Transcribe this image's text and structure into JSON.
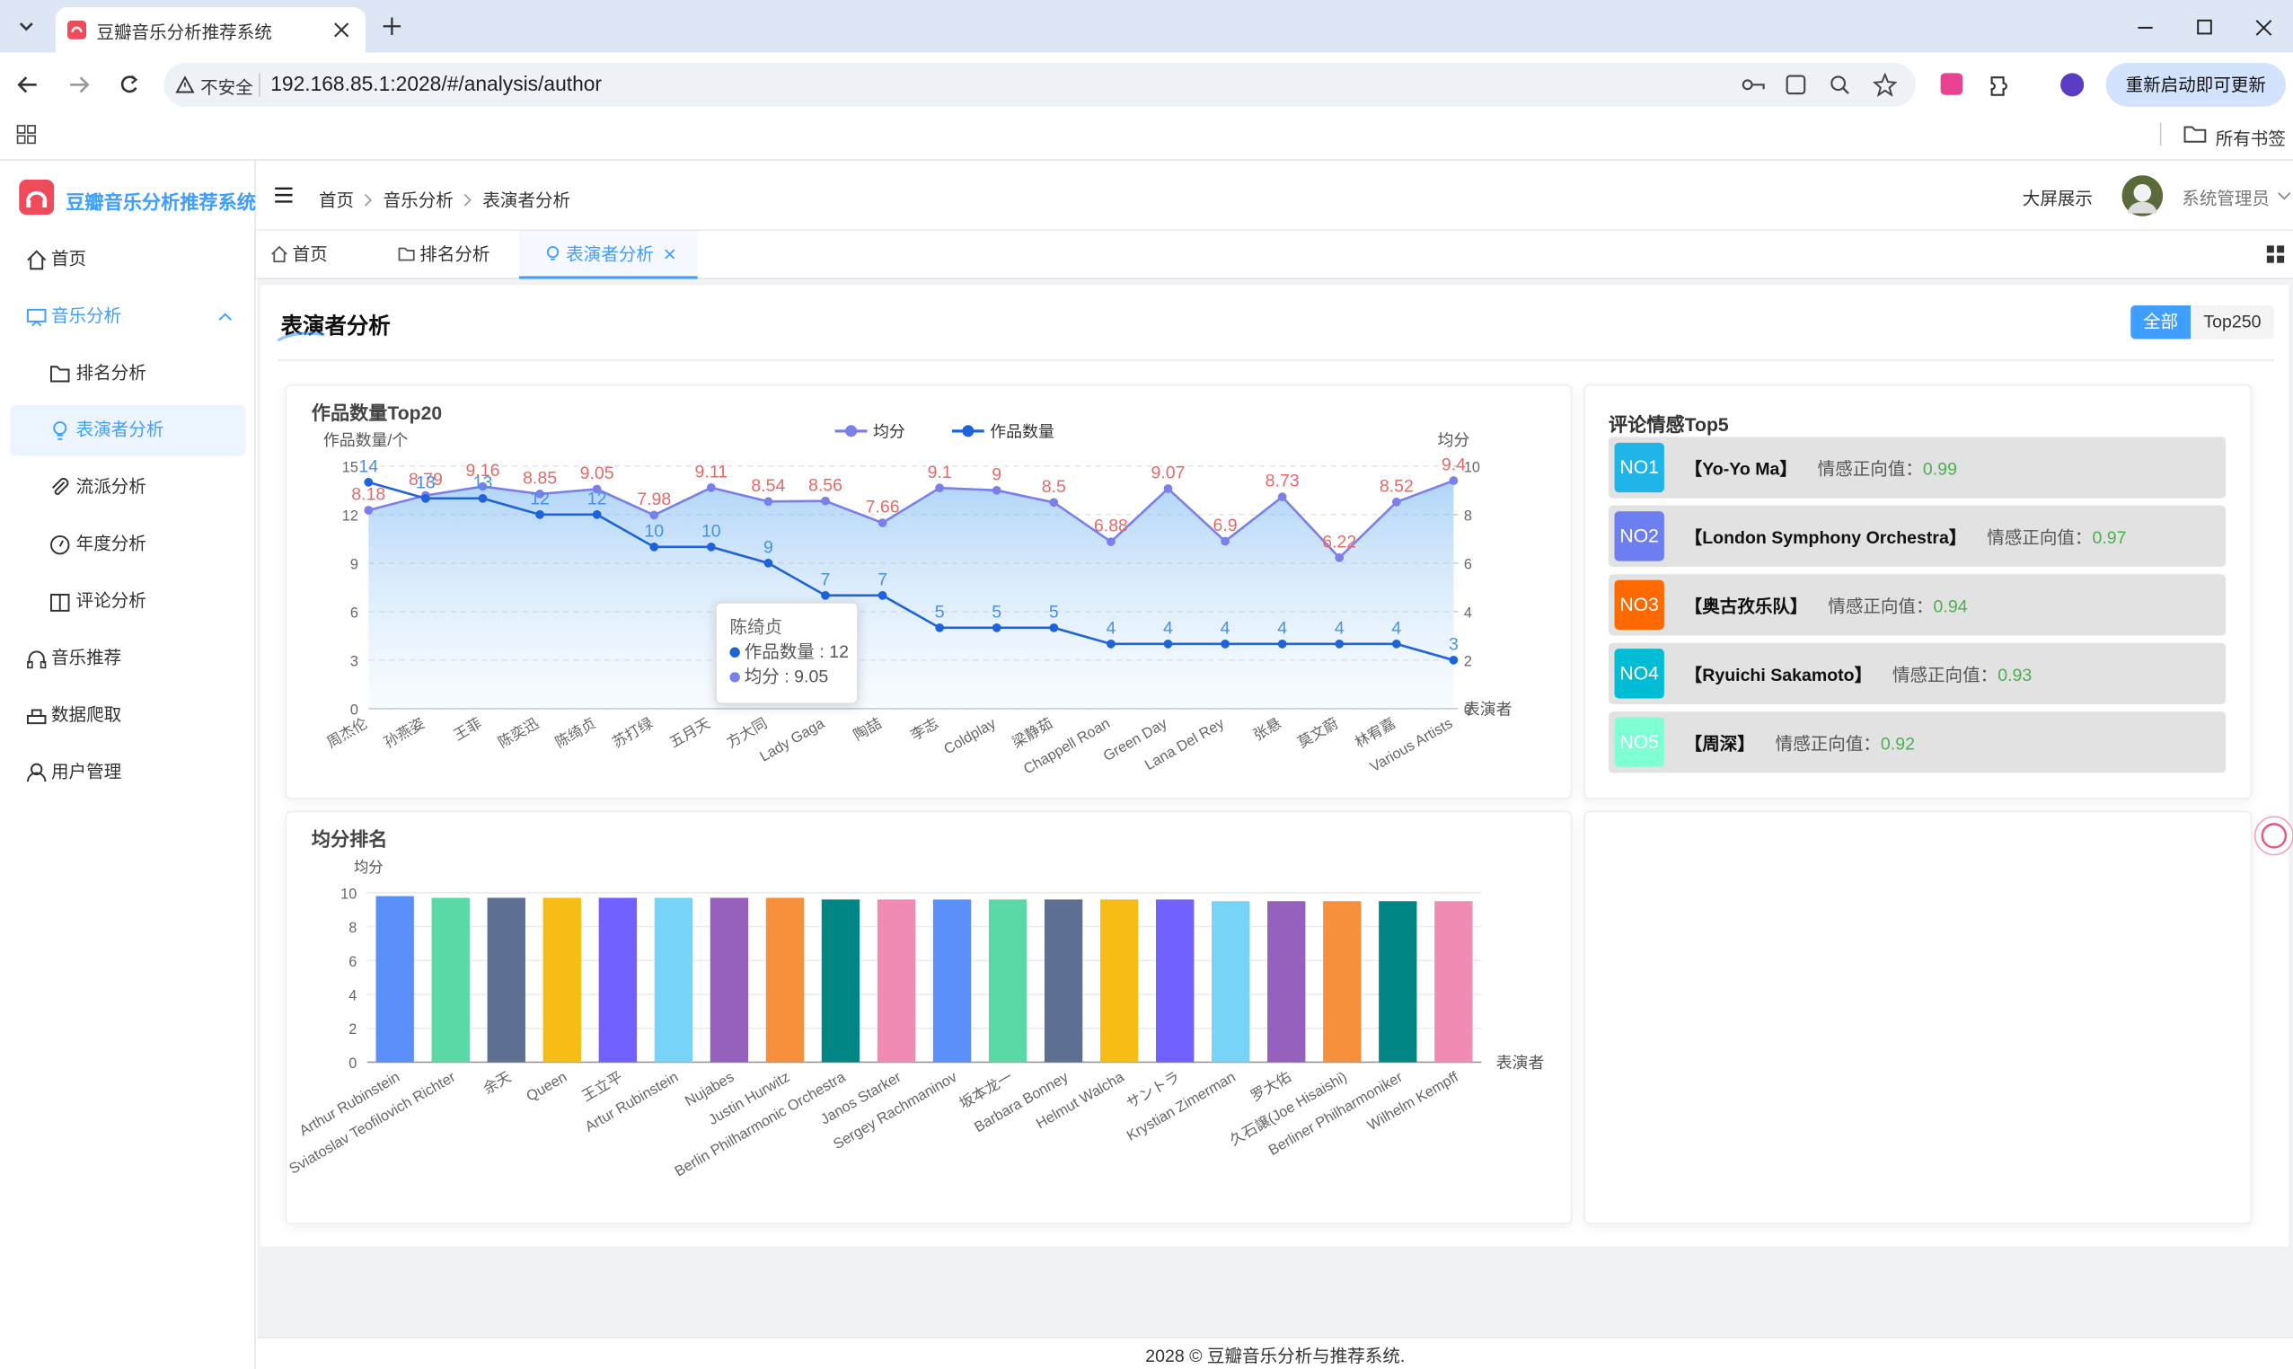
{
  "browser": {
    "tab_title": "豆瓣音乐分析推荐系统",
    "security": "不安全",
    "url": "192.168.85.1:2028/#/analysis/author",
    "update_button": "重新启动即可更新",
    "bookmarks": "所有书签"
  },
  "sidebar": {
    "logo": "豆瓣音乐分析推荐系统",
    "menu": [
      {
        "label": "首页"
      },
      {
        "label": "音乐分析",
        "children": [
          "排名分析",
          "表演者分析",
          "流派分析",
          "年度分析",
          "评论分析"
        ]
      },
      {
        "label": "音乐推荐"
      },
      {
        "label": "数据爬取"
      },
      {
        "label": "用户管理"
      }
    ]
  },
  "header": {
    "breadcrumb": [
      "首页",
      "音乐分析",
      "表演者分析"
    ],
    "screen_button": "大屏展示",
    "user": "系统管理员"
  },
  "tabs": [
    "首页",
    "排名分析",
    "表演者分析"
  ],
  "page": {
    "title": "表演者分析",
    "filters": [
      "全部",
      "Top250"
    ]
  },
  "chart_data": [
    {
      "type": "line",
      "title": "作品数量Top20",
      "y_label": "作品数量/个",
      "y2_label": "均分",
      "x_label": "表演者",
      "legend": "top",
      "grid": true,
      "categories": [
        "周杰伦",
        "孙燕姿",
        "王菲",
        "陈奕迅",
        "陈绮贞",
        "苏打绿",
        "五月天",
        "方大同",
        "Lady Gaga",
        "陶喆",
        "李志",
        "Coldplay",
        "梁静茹",
        "Chappell Roan",
        "Green Day",
        "Lana Del Rey",
        "张悬",
        "莫文蔚",
        "林宥嘉",
        "Various Artists"
      ],
      "series": [
        {
          "name": "均分",
          "axis": "y2",
          "color": "#7b7fe8",
          "label_color": "#e46a6a",
          "area": true,
          "values": [
            8.18,
            8.79,
            9.16,
            8.85,
            9.05,
            7.98,
            9.11,
            8.54,
            8.56,
            7.66,
            9.1,
            9,
            8.5,
            6.88,
            9.07,
            6.9,
            8.73,
            6.22,
            8.52,
            9.4
          ]
        },
        {
          "name": "作品数量",
          "color": "#1e63d8",
          "label_color": "#4a90e2",
          "values": [
            14,
            13,
            13,
            12,
            12,
            10,
            10,
            9,
            7,
            7,
            5,
            5,
            5,
            4,
            4,
            4,
            4,
            4,
            4,
            3
          ]
        }
      ],
      "ylim": [
        0,
        15
      ],
      "yticks": [
        0,
        3,
        6,
        9,
        12,
        15
      ],
      "y2lim": [
        0,
        10
      ],
      "y2ticks": [
        0,
        2,
        4,
        6,
        8,
        10
      ],
      "tooltip": {
        "title": "陈绮贞",
        "items": [
          {
            "name": "作品数量",
            "value": 12
          },
          {
            "name": "均分",
            "value": 9.05
          }
        ]
      }
    },
    {
      "type": "bar",
      "title": "均分排名",
      "y_label": "均分",
      "x_label": "表演者",
      "grid": true,
      "categories": [
        "Arthur Rubinstein",
        "Sviatoslav Teofilovich Richter",
        "余天",
        "Queen",
        "王立平",
        "Artur Rubinstein",
        "Nujabes",
        "Justin Hurwitz",
        "Berlin Philharmonic Orchestra",
        "Janos Starker",
        "Sergey Rachmaninov",
        "坂本龙一",
        "Barbara Bonney",
        "Helmut Walcha",
        "サントラ",
        "Krystian Zimerman",
        "罗大佑",
        "久石譲(Joe Hisaishi)",
        "Berliner Philharmoniker",
        "Wilhelm Kempff"
      ],
      "values": [
        9.8,
        9.7,
        9.7,
        9.7,
        9.7,
        9.7,
        9.7,
        9.7,
        9.6,
        9.6,
        9.6,
        9.6,
        9.6,
        9.6,
        9.6,
        9.5,
        9.5,
        9.5,
        9.5,
        9.5
      ],
      "colors": [
        "#5b8ff9",
        "#5ad8a6",
        "#5d7092",
        "#f6bd16",
        "#7262fd",
        "#78d3f8",
        "#9661bc",
        "#f6903d",
        "#008685",
        "#f08bb4"
      ],
      "ylim": [
        0,
        10
      ],
      "yticks": [
        0,
        2,
        4,
        6,
        8,
        10
      ]
    }
  ],
  "sentiment": {
    "title": "评论情感Top5",
    "value_label": "情感正向值：",
    "items": [
      {
        "rank": "NO1",
        "name": "【Yo-Yo Ma】",
        "value": 0.99,
        "color": "#1fb5e8"
      },
      {
        "rank": "NO2",
        "name": "【London Symphony Orchestra】",
        "value": 0.97,
        "color": "#6c7ef0"
      },
      {
        "rank": "NO3",
        "name": "【奥古孜乐队】",
        "value": 0.94,
        "color": "#ff6a00"
      },
      {
        "rank": "NO4",
        "name": "【Ryuichi Sakamoto】",
        "value": 0.93,
        "color": "#00bcd4"
      },
      {
        "rank": "NO5",
        "name": "【周深】",
        "value": 0.92,
        "color": "#7fffd4"
      }
    ]
  },
  "footer": "2028 © 豆瓣音乐分析与推荐系统."
}
